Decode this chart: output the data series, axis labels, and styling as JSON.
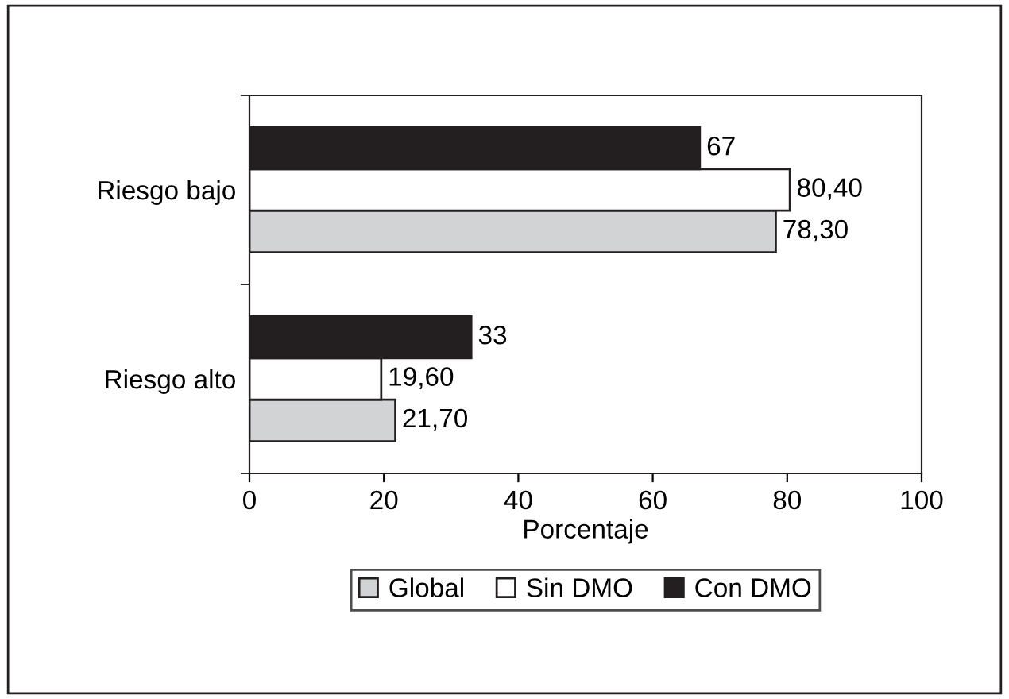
{
  "chart_data": {
    "type": "bar",
    "orientation": "horizontal",
    "xlabel": "Porcentaje",
    "categories": [
      "Riesgo bajo",
      "Riesgo alto"
    ],
    "series": [
      {
        "name": "Global",
        "color": "#d1d3d4",
        "values": [
          78.3,
          21.7
        ],
        "value_labels": [
          "78,30",
          "21,70"
        ]
      },
      {
        "name": "Sin DMO",
        "color": "#ffffff",
        "values": [
          80.4,
          19.6
        ],
        "value_labels": [
          "80,40",
          "19,60"
        ]
      },
      {
        "name": "Con DMO",
        "color": "#231f20",
        "values": [
          67,
          33
        ],
        "value_labels": [
          "67",
          "33"
        ]
      }
    ],
    "xlim": [
      0,
      100
    ],
    "xticks": [
      0,
      20,
      40,
      60,
      80,
      100
    ],
    "grid": false,
    "legend": "bottom"
  }
}
